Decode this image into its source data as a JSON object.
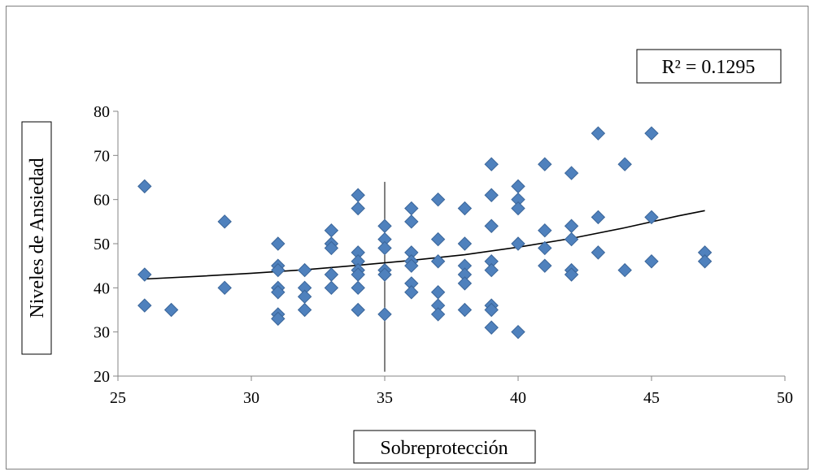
{
  "chart_data": {
    "type": "scatter",
    "xlabel": "Sobreprotección",
    "ylabel": "Niveles de Ansiedad",
    "xlim": [
      25,
      50
    ],
    "ylim": [
      20,
      80
    ],
    "x_ticks": [
      25,
      30,
      35,
      40,
      45,
      50
    ],
    "y_ticks": [
      20,
      30,
      40,
      50,
      60,
      70,
      80
    ],
    "grid": false,
    "legend": "none",
    "annotation": "R² = 0.1295",
    "reference_line_x": 35,
    "marker_color": "#4f81bd",
    "marker_edge_color": "#3a6599",
    "trend_color": "#000000",
    "trendline": {
      "type": "polynomial",
      "x": [
        26,
        28,
        30,
        32,
        34,
        36,
        38,
        40,
        42,
        44,
        46,
        47
      ],
      "y": [
        42.0,
        42.6,
        43.3,
        44.1,
        45.1,
        46.2,
        47.5,
        49.2,
        51.2,
        53.6,
        56.3,
        57.5
      ]
    },
    "points": [
      {
        "x": 26,
        "y": 63
      },
      {
        "x": 26,
        "y": 43
      },
      {
        "x": 26,
        "y": 36
      },
      {
        "x": 27,
        "y": 35
      },
      {
        "x": 29,
        "y": 55
      },
      {
        "x": 29,
        "y": 40
      },
      {
        "x": 31,
        "y": 50
      },
      {
        "x": 31,
        "y": 45
      },
      {
        "x": 31,
        "y": 44
      },
      {
        "x": 31,
        "y": 40
      },
      {
        "x": 31,
        "y": 39
      },
      {
        "x": 31,
        "y": 34
      },
      {
        "x": 31,
        "y": 33
      },
      {
        "x": 32,
        "y": 44
      },
      {
        "x": 32,
        "y": 40
      },
      {
        "x": 32,
        "y": 38
      },
      {
        "x": 32,
        "y": 35
      },
      {
        "x": 33,
        "y": 53
      },
      {
        "x": 33,
        "y": 50
      },
      {
        "x": 33,
        "y": 49
      },
      {
        "x": 33,
        "y": 43
      },
      {
        "x": 33,
        "y": 40
      },
      {
        "x": 34,
        "y": 61
      },
      {
        "x": 34,
        "y": 58
      },
      {
        "x": 34,
        "y": 48
      },
      {
        "x": 34,
        "y": 46
      },
      {
        "x": 34,
        "y": 44
      },
      {
        "x": 34,
        "y": 43
      },
      {
        "x": 34,
        "y": 40
      },
      {
        "x": 34,
        "y": 35
      },
      {
        "x": 35,
        "y": 54
      },
      {
        "x": 35,
        "y": 51
      },
      {
        "x": 35,
        "y": 49
      },
      {
        "x": 35,
        "y": 44
      },
      {
        "x": 35,
        "y": 43
      },
      {
        "x": 35,
        "y": 34
      },
      {
        "x": 36,
        "y": 58
      },
      {
        "x": 36,
        "y": 55
      },
      {
        "x": 36,
        "y": 48
      },
      {
        "x": 36,
        "y": 46
      },
      {
        "x": 36,
        "y": 45
      },
      {
        "x": 36,
        "y": 41
      },
      {
        "x": 36,
        "y": 39
      },
      {
        "x": 37,
        "y": 60
      },
      {
        "x": 37,
        "y": 51
      },
      {
        "x": 37,
        "y": 46
      },
      {
        "x": 37,
        "y": 39
      },
      {
        "x": 37,
        "y": 36
      },
      {
        "x": 37,
        "y": 34
      },
      {
        "x": 38,
        "y": 58
      },
      {
        "x": 38,
        "y": 50
      },
      {
        "x": 38,
        "y": 45
      },
      {
        "x": 38,
        "y": 43
      },
      {
        "x": 38,
        "y": 41
      },
      {
        "x": 38,
        "y": 35
      },
      {
        "x": 39,
        "y": 68
      },
      {
        "x": 39,
        "y": 61
      },
      {
        "x": 39,
        "y": 54
      },
      {
        "x": 39,
        "y": 46
      },
      {
        "x": 39,
        "y": 44
      },
      {
        "x": 39,
        "y": 36
      },
      {
        "x": 39,
        "y": 35
      },
      {
        "x": 39,
        "y": 31
      },
      {
        "x": 40,
        "y": 63
      },
      {
        "x": 40,
        "y": 60
      },
      {
        "x": 40,
        "y": 58
      },
      {
        "x": 40,
        "y": 50
      },
      {
        "x": 40,
        "y": 30
      },
      {
        "x": 41,
        "y": 68
      },
      {
        "x": 41,
        "y": 53
      },
      {
        "x": 41,
        "y": 49
      },
      {
        "x": 41,
        "y": 45
      },
      {
        "x": 42,
        "y": 66
      },
      {
        "x": 42,
        "y": 54
      },
      {
        "x": 42,
        "y": 51
      },
      {
        "x": 42,
        "y": 44
      },
      {
        "x": 42,
        "y": 43
      },
      {
        "x": 43,
        "y": 75
      },
      {
        "x": 43,
        "y": 56
      },
      {
        "x": 43,
        "y": 48
      },
      {
        "x": 44,
        "y": 68
      },
      {
        "x": 44,
        "y": 44
      },
      {
        "x": 45,
        "y": 75
      },
      {
        "x": 45,
        "y": 56
      },
      {
        "x": 45,
        "y": 46
      },
      {
        "x": 47,
        "y": 48
      },
      {
        "x": 47,
        "y": 46
      }
    ]
  }
}
